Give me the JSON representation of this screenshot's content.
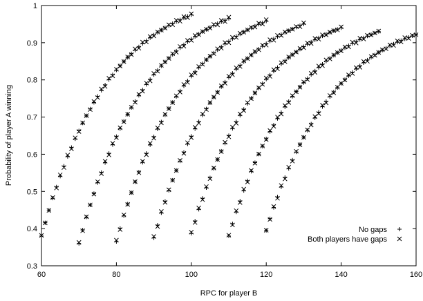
{
  "chart_data": {
    "type": "scatter",
    "xlabel": "RPC for player B",
    "ylabel": "Probability of player A winning",
    "xlim": [
      60,
      160
    ],
    "ylim": [
      0.3,
      1
    ],
    "x_ticks": [
      60,
      80,
      100,
      120,
      140,
      160
    ],
    "y_ticks": [
      0.3,
      0.4,
      0.5,
      0.6,
      0.7,
      0.8,
      0.9,
      1
    ],
    "y_tick_labels": [
      "0.3",
      "0.4",
      "0.5",
      "0.6",
      "0.7",
      "0.8",
      "0.9",
      "1"
    ],
    "grid": false,
    "legend_position": "bottom-right",
    "legend": [
      {
        "label": "No gaps",
        "marker": "plus"
      },
      {
        "label": "Both players have gaps",
        "marker": "cross"
      }
    ],
    "curves": [
      {
        "x0": 60,
        "y_start": 0.38,
        "y_end": 0.975
      },
      {
        "x0": 70,
        "y_start": 0.36,
        "y_end": 0.965
      },
      {
        "x0": 80,
        "y_start": 0.365,
        "y_end": 0.958
      },
      {
        "x0": 90,
        "y_start": 0.375,
        "y_end": 0.95
      },
      {
        "x0": 100,
        "y_start": 0.387,
        "y_end": 0.94
      },
      {
        "x0": 110,
        "y_start": 0.38,
        "y_end": 0.93
      },
      {
        "x0": 120,
        "y_start": 0.395,
        "y_end": 0.922
      }
    ],
    "curve_span": 40,
    "points_per_curve": 40
  }
}
